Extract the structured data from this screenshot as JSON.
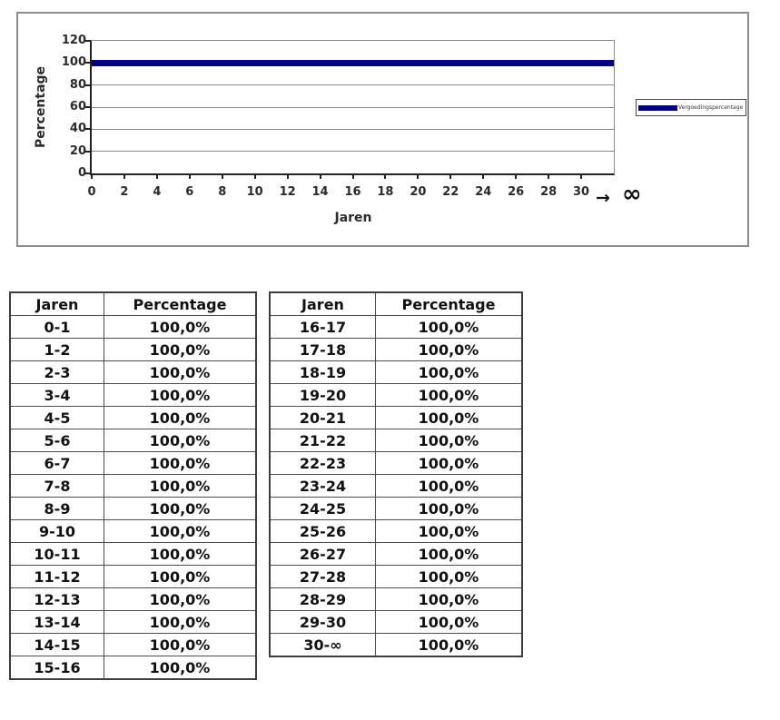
{
  "chart_data": {
    "type": "line",
    "title": "",
    "xlabel": "Jaren",
    "ylabel": "Percentage",
    "xlim": [
      0,
      32
    ],
    "ylim": [
      0,
      120
    ],
    "x_ticks": [
      0,
      2,
      4,
      6,
      8,
      10,
      12,
      14,
      16,
      18,
      20,
      22,
      24,
      26,
      28,
      30
    ],
    "y_ticks": [
      0,
      20,
      40,
      60,
      80,
      100,
      120
    ],
    "x_axis_suffix": {
      "arrow": "→",
      "infinity": "∞"
    },
    "grid": true,
    "legend_position": "right-outside-plot",
    "series": [
      {
        "name": "Vergoedingspercentage",
        "color": "#000080",
        "x": [
          0,
          32
        ],
        "y": [
          100,
          100
        ],
        "note": "constant 100% from year 0 continuing to ∞"
      }
    ]
  },
  "tables": {
    "left": {
      "headers": [
        "Jaren",
        "Percentage"
      ],
      "rows": [
        [
          "0-1",
          "100,0%"
        ],
        [
          "1-2",
          "100,0%"
        ],
        [
          "2-3",
          "100,0%"
        ],
        [
          "3-4",
          "100,0%"
        ],
        [
          "4-5",
          "100,0%"
        ],
        [
          "5-6",
          "100,0%"
        ],
        [
          "6-7",
          "100,0%"
        ],
        [
          "7-8",
          "100,0%"
        ],
        [
          "8-9",
          "100,0%"
        ],
        [
          "9-10",
          "100,0%"
        ],
        [
          "10-11",
          "100,0%"
        ],
        [
          "11-12",
          "100,0%"
        ],
        [
          "12-13",
          "100,0%"
        ],
        [
          "13-14",
          "100,0%"
        ],
        [
          "14-15",
          "100,0%"
        ],
        [
          "15-16",
          "100,0%"
        ]
      ]
    },
    "right": {
      "headers": [
        "Jaren",
        "Percentage"
      ],
      "rows": [
        [
          "16-17",
          "100,0%"
        ],
        [
          "17-18",
          "100,0%"
        ],
        [
          "18-19",
          "100,0%"
        ],
        [
          "19-20",
          "100,0%"
        ],
        [
          "20-21",
          "100,0%"
        ],
        [
          "21-22",
          "100,0%"
        ],
        [
          "22-23",
          "100,0%"
        ],
        [
          "23-24",
          "100,0%"
        ],
        [
          "24-25",
          "100,0%"
        ],
        [
          "25-26",
          "100,0%"
        ],
        [
          "26-27",
          "100,0%"
        ],
        [
          "27-28",
          "100,0%"
        ],
        [
          "28-29",
          "100,0%"
        ],
        [
          "29-30",
          "100,0%"
        ],
        [
          "30-∞",
          "100,0%"
        ]
      ]
    }
  }
}
